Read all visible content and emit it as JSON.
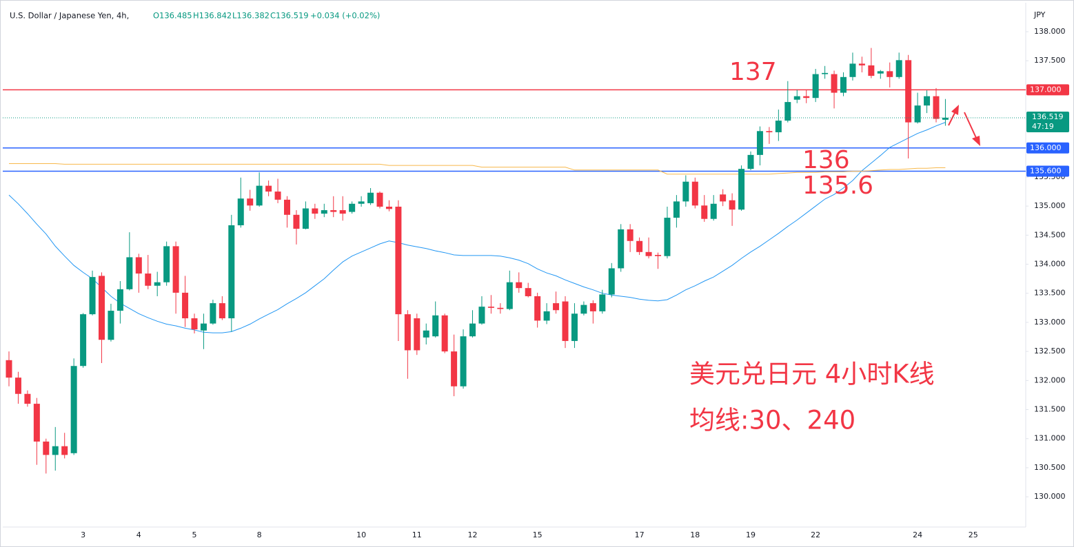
{
  "header": {
    "symbol": "U.S. Dollar / Japanese Yen, 4h,",
    "open": "O136.485",
    "high": "H136.842",
    "low": "L136.382",
    "close": "C136.519",
    "change": "+0.034 (+0.02%)"
  },
  "chart_data": {
    "type": "candlestick",
    "currency": "JPY",
    "up_color": "#089981",
    "down_color": "#f23645",
    "categories": [
      null,
      null,
      null,
      null,
      null,
      null,
      null,
      null,
      "3",
      null,
      null,
      null,
      null,
      null,
      "4",
      null,
      null,
      null,
      null,
      null,
      "5",
      null,
      null,
      null,
      null,
      null,
      null,
      "8",
      null,
      null,
      null,
      null,
      null,
      null,
      null,
      null,
      null,
      null,
      "10",
      null,
      null,
      null,
      null,
      null,
      "11",
      null,
      null,
      null,
      null,
      null,
      "12",
      null,
      null,
      null,
      null,
      null,
      null,
      "15",
      null,
      null,
      null,
      null,
      null,
      null,
      null,
      null,
      null,
      null,
      "17",
      null,
      null,
      null,
      null,
      null,
      "18",
      null,
      null,
      null,
      null,
      null,
      "19",
      null,
      null,
      null,
      null,
      null,
      null,
      "22",
      null,
      null,
      null,
      null,
      null,
      null,
      null,
      null,
      null,
      null,
      "24",
      null,
      null,
      null,
      null,
      null,
      "25"
    ],
    "open": [
      132.35,
      132.05,
      131.77,
      131.6,
      130.95,
      130.72,
      130.87,
      130.75,
      132.25,
      133.14,
      133.8,
      132.7,
      133.2,
      133.57,
      134.12,
      133.84,
      133.63,
      133.69,
      134.31,
      133.51,
      133.07,
      132.86,
      132.98,
      133.33,
      133.07,
      134.67,
      135.13,
      135.01,
      135.35,
      135.25,
      135.11,
      134.85,
      134.61,
      134.96,
      134.87,
      134.93,
      134.93,
      134.9,
      135.04,
      135.05,
      135.23,
      134.99,
      134.99,
      133.14,
      133.07,
      132.74,
      132.76,
      133.12,
      132.5,
      131.9,
      132.76,
      132.98,
      133.27,
      133.25,
      133.23,
      133.69,
      133.59,
      133.45,
      133.03,
      133.33,
      133.36,
      132.68,
      133.15,
      133.33,
      133.19,
      133.48,
      133.93,
      134.6,
      134.4,
      134.21,
      134.16,
      134.14,
      134.8,
      135.08,
      135.42,
      135.01,
      134.78,
      135.2,
      135.1,
      134.94,
      135.64,
      135.88,
      136.29,
      136.27,
      136.47,
      136.83,
      136.89,
      136.86,
      137.27,
      137.27,
      136.95,
      137.22,
      137.45,
      137.42,
      137.28,
      137.32,
      137.22,
      137.51,
      136.44,
      136.73,
      136.89,
      136.485,
      null,
      null,
      null
    ],
    "high": [
      132.5,
      132.15,
      131.83,
      131.7,
      131.0,
      131.2,
      131.1,
      132.38,
      133.16,
      133.89,
      133.86,
      133.32,
      133.71,
      134.55,
      134.18,
      134.16,
      133.87,
      134.39,
      134.39,
      133.8,
      133.15,
      133.15,
      133.39,
      133.45,
      134.85,
      135.49,
      135.28,
      135.58,
      135.44,
      135.47,
      135.17,
      134.93,
      135.08,
      135.04,
      135.04,
      135.17,
      135.17,
      135.08,
      135.17,
      135.31,
      135.25,
      135.1,
      135.1,
      133.21,
      133.15,
      132.98,
      133.36,
      133.15,
      132.79,
      132.88,
      133.21,
      133.45,
      133.47,
      133.33,
      133.89,
      133.86,
      133.68,
      133.51,
      133.33,
      133.53,
      133.45,
      133.33,
      133.36,
      133.38,
      133.56,
      134.02,
      134.69,
      134.69,
      134.46,
      134.46,
      134.2,
      134.99,
      135.19,
      135.53,
      135.49,
      135.19,
      135.19,
      135.29,
      135.22,
      135.7,
      135.94,
      136.37,
      136.36,
      136.66,
      137.15,
      137.0,
      137.0,
      137.36,
      137.41,
      137.33,
      137.3,
      137.64,
      137.57,
      137.72,
      137.34,
      137.47,
      137.64,
      137.6,
      136.95,
      136.99,
      137.03,
      136.842,
      null,
      null,
      null
    ],
    "low": [
      131.9,
      131.6,
      131.55,
      130.55,
      130.4,
      130.45,
      130.66,
      130.72,
      132.22,
      133.12,
      132.3,
      132.67,
      132.98,
      133.55,
      133.51,
      133.57,
      133.45,
      133.63,
      133.15,
      132.92,
      132.81,
      132.54,
      132.96,
      133.04,
      132.84,
      134.63,
      134.92,
      134.99,
      135.17,
      135.05,
      134.63,
      134.34,
      134.6,
      134.78,
      134.81,
      134.81,
      134.75,
      134.87,
      134.99,
      135.02,
      134.96,
      134.91,
      132.68,
      132.03,
      132.44,
      132.62,
      132.74,
      132.47,
      131.73,
      131.86,
      132.74,
      132.96,
      133.15,
      133.15,
      133.21,
      133.51,
      133.43,
      132.91,
      132.97,
      133.15,
      132.56,
      132.56,
      133.12,
      132.98,
      133.15,
      133.43,
      133.87,
      134.21,
      134.16,
      134.1,
      133.92,
      134.1,
      134.63,
      134.99,
      134.96,
      134.73,
      134.75,
      135.0,
      134.66,
      134.92,
      135.62,
      135.7,
      136.07,
      136.12,
      136.44,
      136.77,
      136.77,
      136.79,
      137.19,
      136.68,
      136.89,
      137.16,
      137.3,
      137.2,
      137.19,
      137.04,
      137.19,
      135.82,
      136.42,
      136.6,
      136.44,
      136.382,
      null,
      null,
      null
    ],
    "close": [
      132.05,
      131.77,
      131.6,
      130.95,
      130.72,
      130.87,
      130.72,
      132.25,
      133.14,
      133.78,
      132.7,
      133.2,
      133.57,
      134.12,
      133.84,
      133.63,
      133.69,
      134.31,
      133.51,
      133.07,
      132.88,
      132.98,
      133.33,
      133.07,
      134.67,
      135.13,
      135.01,
      135.35,
      135.25,
      135.11,
      134.85,
      134.61,
      134.96,
      134.87,
      134.93,
      134.9,
      134.87,
      135.04,
      135.08,
      135.23,
      134.99,
      134.95,
      133.14,
      132.52,
      132.52,
      132.86,
      133.12,
      132.5,
      131.9,
      132.76,
      132.98,
      133.27,
      133.25,
      133.23,
      133.69,
      133.59,
      133.45,
      133.03,
      133.19,
      133.21,
      132.68,
      133.15,
      133.3,
      133.19,
      133.48,
      133.93,
      134.6,
      134.4,
      134.21,
      134.14,
      134.14,
      134.8,
      135.08,
      135.42,
      135.01,
      134.78,
      135.04,
      135.08,
      134.94,
      135.64,
      135.88,
      136.29,
      136.27,
      136.47,
      136.79,
      136.89,
      136.86,
      137.27,
      137.29,
      136.95,
      137.22,
      137.45,
      137.42,
      137.24,
      137.32,
      137.22,
      137.51,
      136.44,
      136.73,
      136.89,
      136.5,
      136.519,
      null,
      null,
      null
    ],
    "moving_averages": [
      {
        "color": "#2196f3",
        "values": [
          135.19,
          135.04,
          134.87,
          134.69,
          134.52,
          134.31,
          134.14,
          133.98,
          133.86,
          133.75,
          133.6,
          133.45,
          133.33,
          133.24,
          133.15,
          133.08,
          133.02,
          132.97,
          132.94,
          132.9,
          132.87,
          132.83,
          132.82,
          132.82,
          132.84,
          132.9,
          132.97,
          133.06,
          133.14,
          133.22,
          133.32,
          133.41,
          133.51,
          133.63,
          133.75,
          133.9,
          134.04,
          134.14,
          134.21,
          134.28,
          134.35,
          134.4,
          134.37,
          134.33,
          134.3,
          134.27,
          134.23,
          134.2,
          134.16,
          134.15,
          134.15,
          134.15,
          134.15,
          134.14,
          134.11,
          134.07,
          134.01,
          133.92,
          133.85,
          133.8,
          133.73,
          133.67,
          133.61,
          133.56,
          133.5,
          133.47,
          133.45,
          133.43,
          133.4,
          133.38,
          133.37,
          133.39,
          133.47,
          133.56,
          133.63,
          133.71,
          133.78,
          133.88,
          133.98,
          134.1,
          134.21,
          134.31,
          134.42,
          134.53,
          134.65,
          134.76,
          134.88,
          135,
          135.12,
          135.2,
          135.31,
          135.44,
          135.61,
          135.74,
          135.87,
          136.01,
          136.09,
          136.17,
          136.25,
          136.31,
          136.38,
          136.44,
          null,
          null,
          null
        ]
      },
      {
        "color": "#f7b84b",
        "values": [
          135.73,
          135.73,
          135.73,
          135.73,
          135.73,
          135.73,
          135.72,
          135.72,
          135.72,
          135.72,
          135.72,
          135.72,
          135.72,
          135.72,
          135.72,
          135.72,
          135.72,
          135.72,
          135.72,
          135.72,
          135.72,
          135.72,
          135.72,
          135.72,
          135.72,
          135.72,
          135.72,
          135.72,
          135.72,
          135.72,
          135.72,
          135.72,
          135.72,
          135.72,
          135.72,
          135.72,
          135.72,
          135.72,
          135.72,
          135.72,
          135.72,
          135.7,
          135.7,
          135.7,
          135.7,
          135.7,
          135.7,
          135.7,
          135.7,
          135.7,
          135.7,
          135.67,
          135.67,
          135.67,
          135.67,
          135.67,
          135.67,
          135.67,
          135.67,
          135.67,
          135.67,
          135.62,
          135.62,
          135.62,
          135.62,
          135.62,
          135.62,
          135.62,
          135.62,
          135.62,
          135.62,
          135.55,
          135.55,
          135.55,
          135.55,
          135.55,
          135.55,
          135.55,
          135.55,
          135.55,
          135.55,
          135.55,
          135.55,
          135.56,
          135.57,
          135.58,
          135.58,
          135.58,
          135.59,
          135.59,
          135.59,
          135.6,
          135.6,
          135.61,
          135.62,
          135.63,
          135.63,
          135.64,
          135.65,
          135.65,
          135.66,
          135.66,
          null,
          null,
          null
        ]
      }
    ],
    "levels": [
      {
        "value": 137,
        "label": "137.000",
        "color": "#f23645"
      },
      {
        "value": 136,
        "label": "136.000",
        "color": "#2962ff"
      },
      {
        "value": 135.6,
        "label": "135.600",
        "color": "#2962ff"
      }
    ],
    "last_price": {
      "value": 136.519,
      "countdown": "47:19",
      "color": "#089981"
    },
    "ylim": [
      129.48,
      138.45
    ],
    "yticks": [
      {
        "value": 130,
        "label": "130.000"
      },
      {
        "value": 130.5,
        "label": "130.500"
      },
      {
        "value": 131,
        "label": "131.000"
      },
      {
        "value": 131.5,
        "label": "131.500"
      },
      {
        "value": 132,
        "label": "132.000"
      },
      {
        "value": 132.5,
        "label": "132.500"
      },
      {
        "value": 133,
        "label": "133.000"
      },
      {
        "value": 133.5,
        "label": "133.500"
      },
      {
        "value": 134,
        "label": "134.000"
      },
      {
        "value": 134.5,
        "label": "134.500"
      },
      {
        "value": 135,
        "label": "135.000"
      },
      {
        "value": 135.5,
        "label": "135.500"
      },
      {
        "value": 136,
        "label": "136.000"
      },
      {
        "value": 136.5,
        "label": "136.500"
      },
      {
        "value": 137,
        "label": "137.000"
      },
      {
        "value": 137.5,
        "label": "137.500"
      },
      {
        "value": 138,
        "label": "138.000"
      }
    ],
    "grid": false,
    "annotations": [
      {
        "text": "137",
        "color": "#f23645"
      },
      {
        "text": "136",
        "color": "#f23645"
      },
      {
        "text": "135.6",
        "color": "#f23645"
      },
      {
        "text": "美元兑日元 4小时K线",
        "color": "#f23645"
      },
      {
        "text": "均线:30、240",
        "color": "#f23645"
      }
    ]
  }
}
